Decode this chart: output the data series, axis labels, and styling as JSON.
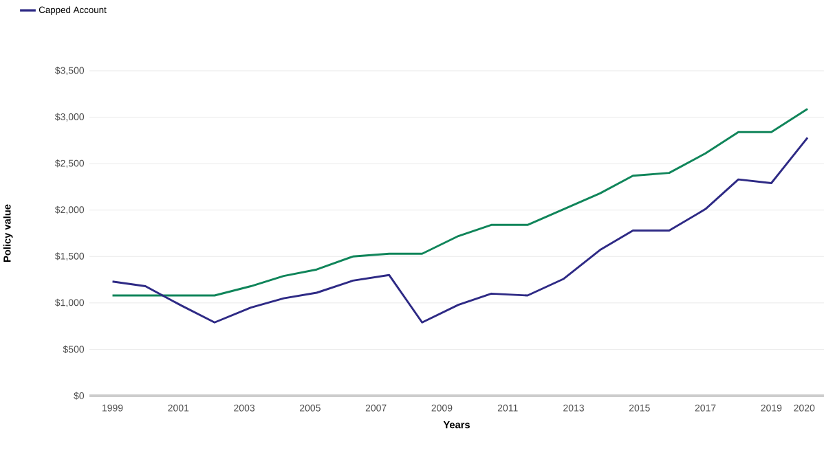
{
  "chart_data": {
    "type": "line",
    "xlabel": "Years",
    "ylabel": "Policy value",
    "xlim": [
      1998.3,
      2020.6
    ],
    "xticks": [
      1999,
      2001,
      2003,
      2005,
      2007,
      2009,
      2011,
      2013,
      2015,
      2017,
      2019,
      2020
    ],
    "ylim": [
      0,
      3500
    ],
    "yticks": [
      {
        "value": 0,
        "label": "$0"
      },
      {
        "value": 500,
        "label": "$500"
      },
      {
        "value": 1000,
        "label": "$1,000"
      },
      {
        "value": 1500,
        "label": "$1,500"
      },
      {
        "value": 2000,
        "label": "$2,000"
      },
      {
        "value": 2500,
        "label": "$2,500"
      },
      {
        "value": 3000,
        "label": "$3,000"
      },
      {
        "value": 3500,
        "label": "$3,500"
      }
    ],
    "grid": "y",
    "legend": "top left",
    "line_style": "solid",
    "x": [
      1999.0,
      2000.0,
      2001.1,
      2002.1,
      2003.2,
      2004.2,
      2005.2,
      2006.3,
      2007.4,
      2008.4,
      2009.5,
      2010.5,
      2011.6,
      2012.7,
      2013.8,
      2014.8,
      2015.9,
      2017.0,
      2018.0,
      2019.0,
      2020.1
    ],
    "series": [
      {
        "color": "#10855a",
        "values": [
          1080,
          1080,
          1080,
          1080,
          1180,
          1290,
          1360,
          1500,
          1530,
          1530,
          1720,
          1840,
          1840,
          2010,
          2180,
          2370,
          2400,
          2610,
          2840,
          2840,
          3090
        ]
      },
      {
        "name": "Capped Account",
        "color": "#2e2a85",
        "values": [
          1230,
          1180,
          970,
          790,
          950,
          1050,
          1110,
          1240,
          1300,
          790,
          980,
          1100,
          1080,
          1260,
          1570,
          1780,
          1780,
          2010,
          2330,
          2290,
          2780
        ]
      }
    ]
  }
}
